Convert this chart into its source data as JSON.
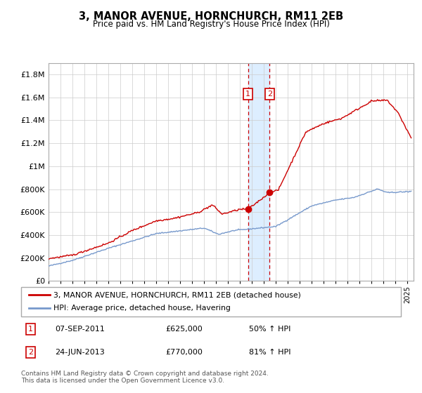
{
  "title": "3, MANOR AVENUE, HORNCHURCH, RM11 2EB",
  "subtitle": "Price paid vs. HM Land Registry's House Price Index (HPI)",
  "footer": "Contains HM Land Registry data © Crown copyright and database right 2024.\nThis data is licensed under the Open Government Licence v3.0.",
  "legend_line1": "3, MANOR AVENUE, HORNCHURCH, RM11 2EB (detached house)",
  "legend_line2": "HPI: Average price, detached house, Havering",
  "sale1_label": "1",
  "sale1_date": "07-SEP-2011",
  "sale1_price": "£625,000",
  "sale1_hpi": "50% ↑ HPI",
  "sale2_label": "2",
  "sale2_date": "24-JUN-2013",
  "sale2_price": "£770,000",
  "sale2_hpi": "81% ↑ HPI",
  "red_color": "#cc0000",
  "blue_color": "#7799cc",
  "shade_color": "#ddeeff",
  "ylim": [
    0,
    1900000
  ],
  "yticks": [
    0,
    200000,
    400000,
    600000,
    800000,
    1000000,
    1200000,
    1400000,
    1600000,
    1800000
  ],
  "ytick_labels": [
    "£0",
    "£200K",
    "£400K",
    "£600K",
    "£800K",
    "£1M",
    "£1.2M",
    "£1.4M",
    "£1.6M",
    "£1.8M"
  ],
  "sale1_year": 2011.67,
  "sale2_year": 2013.48,
  "sale1_value": 625000,
  "sale2_value": 770000,
  "xlim_start": 1995,
  "xlim_end": 2025.5
}
